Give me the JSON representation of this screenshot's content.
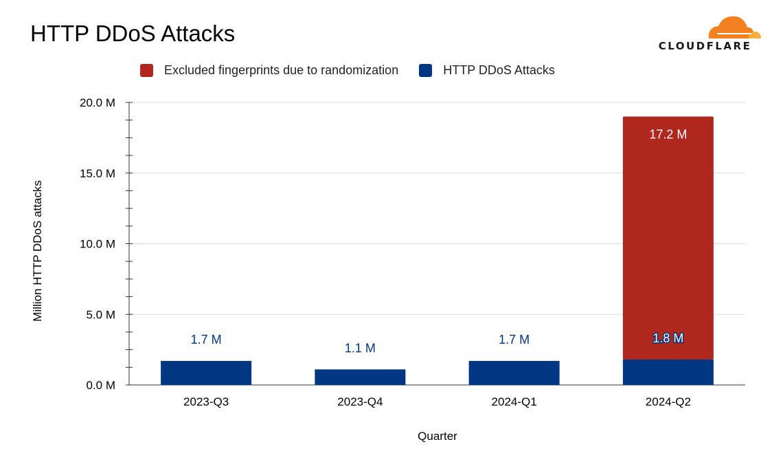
{
  "title": "HTTP DDoS Attacks",
  "logo": {
    "name": "cloudflare-logo",
    "text": "CLOUDFLARE"
  },
  "colors": {
    "excluded": "#B0271E",
    "attacks": "#003682",
    "grid": "#d9d9d9",
    "cloud_main": "#F48120",
    "cloud_light": "#FBAE40"
  },
  "chart_data": {
    "type": "bar",
    "stacked": true,
    "categories": [
      "2023-Q3",
      "2023-Q4",
      "2024-Q1",
      "2024-Q2"
    ],
    "series": [
      {
        "name": "HTTP DDoS Attacks",
        "values": [
          1.7,
          1.1,
          1.7,
          1.8
        ],
        "labels": [
          "1.7 M",
          "1.1 M",
          "1.7 M",
          "1.8 M"
        ],
        "color": "#003682"
      },
      {
        "name": "Excluded fingerprints due to randomization",
        "values": [
          0,
          0,
          0,
          17.2
        ],
        "labels": [
          "",
          "",
          "",
          "17.2 M"
        ],
        "color": "#B0271E"
      }
    ],
    "xlabel": "Quarter",
    "ylabel": "Million HTTP DDoS attacks",
    "ylim": [
      0,
      20
    ],
    "yticks": [
      0,
      5,
      10,
      15,
      20
    ],
    "ytick_labels": [
      "0.0 M",
      "5.0 M",
      "10.0 M",
      "15.0 M",
      "20.0 M"
    ],
    "grid": true,
    "legend_position": "top"
  }
}
